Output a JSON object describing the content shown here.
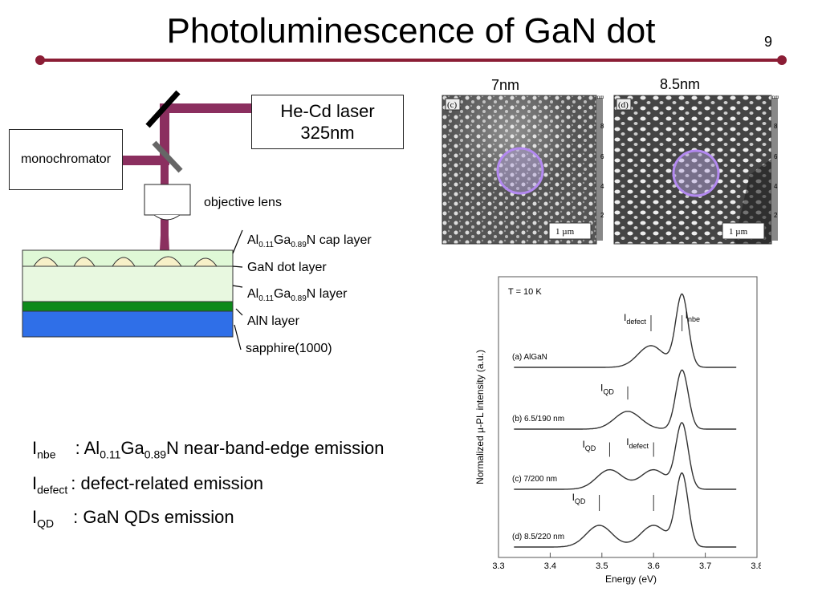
{
  "slide": {
    "title": "Photoluminescence of GaN dot",
    "page_number": "9"
  },
  "setup": {
    "laser": [
      "He-Cd laser",
      "325nm"
    ],
    "monochromator": "monochromator",
    "objective_lens": "objective lens",
    "layers": {
      "cap": {
        "a": "Al",
        "a_sub": "0.11",
        "b": "Ga",
        "b_sub": "0.89",
        "c": "N cap layer"
      },
      "dot": "GaN dot layer",
      "algan": {
        "a": "Al",
        "a_sub": "0.11",
        "b": "Ga",
        "b_sub": "0.89",
        "c": "N layer"
      },
      "aln": "AlN layer",
      "sapphire": "sapphire(1000)"
    }
  },
  "afm": {
    "c": {
      "size": "7nm",
      "panel": "(c)",
      "scale": "1 µm"
    },
    "d": {
      "size": "8.5nm",
      "panel": "(d)",
      "scale": "1 µm"
    },
    "colorbar_ticks": [
      "8",
      "6",
      "4",
      "2"
    ],
    "colorbar_unit": "nm"
  },
  "chart_data": {
    "type": "line",
    "temperature": "T = 10 K",
    "xlabel": "Energy (eV)",
    "ylabel": "Normalized µ-PL intensity (a.u.)",
    "xlim": [
      3.3,
      3.8
    ],
    "xticks": [
      "3.3",
      "3.4",
      "3.5",
      "3.6",
      "3.7",
      "3.8"
    ],
    "series": [
      {
        "name": "(a) AlGaN",
        "peaks": [
          {
            "x": 3.595,
            "label": "I",
            "sub": "defect"
          },
          {
            "x": 3.655,
            "label": "I",
            "sub": "nbe"
          }
        ]
      },
      {
        "name": "(b) 6.5/190 nm",
        "peaks": [
          {
            "x": 3.55,
            "label": "I",
            "sub": "QD"
          }
        ]
      },
      {
        "name": "(c) 7/200 nm",
        "peaks": [
          {
            "x": 3.515,
            "label": "I",
            "sub": "QD"
          },
          {
            "x": 3.6,
            "label": "I",
            "sub": "defect"
          }
        ]
      },
      {
        "name": "(d) 8.5/220 nm",
        "peaks": [
          {
            "x": 3.495,
            "label": "I",
            "sub": "QD"
          },
          {
            "x": 3.6,
            "label": ""
          }
        ]
      }
    ]
  },
  "legend": [
    {
      "key": "I",
      "key_sub": "nbe",
      "text_pre": ": Al",
      "s1": "0.11",
      "t2": "Ga",
      "s2": "0.89",
      "t3": "N near-band-edge emission"
    },
    {
      "key": "I",
      "key_sub": "defect",
      "text": ": defect-related emission"
    },
    {
      "key": "I",
      "key_sub": "QD",
      "text": ": GaN QDs emission"
    }
  ]
}
